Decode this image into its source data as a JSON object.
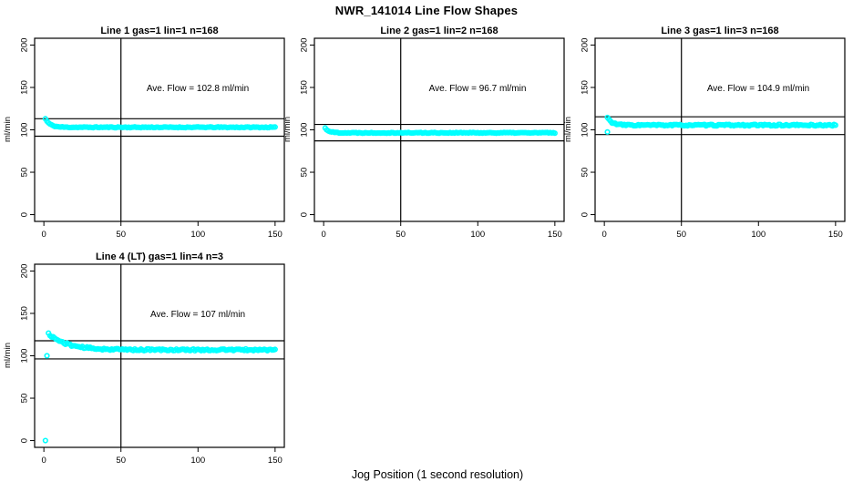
{
  "figure": {
    "title": "NWR_141014  Line Flow Shapes",
    "xlabel": "Jog Position (1 second resolution)",
    "ylabel": "ml/min",
    "point_color": "#00FFFF",
    "line_color": "#000000",
    "background": "#FFFFFF"
  },
  "chart_data": [
    {
      "type": "scatter",
      "title": "Line 1 gas=1 lin=1 n=168",
      "annotation": "Ave. Flow =  102.8  ml/min",
      "ave_flow_ml_min": 102.8,
      "n": 168,
      "xlim": [
        0,
        150
      ],
      "ylim": [
        0,
        200
      ],
      "xticks": [
        0,
        50,
        100,
        150
      ],
      "yticks": [
        0,
        50,
        100,
        150,
        200
      ],
      "ref_line_x": 50,
      "ref_lines_y": [
        113.1,
        92.5
      ],
      "annotation_xy": [
        100,
        150
      ],
      "model": {
        "x_start": 1,
        "x_end": 150,
        "steady": 103.0,
        "amplitude": 10.0,
        "tau": 3.0,
        "noise": 0.5,
        "seed": 11
      },
      "outliers": []
    },
    {
      "type": "scatter",
      "title": "Line 2 gas=1 lin=2 n=168",
      "annotation": "Ave. Flow =  96.7  ml/min",
      "ave_flow_ml_min": 96.7,
      "n": 168,
      "xlim": [
        0,
        150
      ],
      "ylim": [
        0,
        200
      ],
      "xticks": [
        0,
        50,
        100,
        150
      ],
      "yticks": [
        0,
        50,
        100,
        150,
        200
      ],
      "ref_line_x": 50,
      "ref_lines_y": [
        106.4,
        87.0
      ],
      "annotation_xy": [
        100,
        150
      ],
      "model": {
        "x_start": 1,
        "x_end": 150,
        "steady": 96.5,
        "amplitude": 5.5,
        "tau": 2.5,
        "noise": 0.5,
        "seed": 22
      },
      "outliers": []
    },
    {
      "type": "scatter",
      "title": "Line 3 gas=1 lin=3 n=168",
      "annotation": "Ave. Flow =  104.9  ml/min",
      "ave_flow_ml_min": 104.9,
      "n": 168,
      "xlim": [
        0,
        150
      ],
      "ylim": [
        0,
        200
      ],
      "xticks": [
        0,
        50,
        100,
        150
      ],
      "yticks": [
        0,
        50,
        100,
        150,
        200
      ],
      "ref_line_x": 50,
      "ref_lines_y": [
        115.4,
        94.4
      ],
      "annotation_xy": [
        100,
        150
      ],
      "model": {
        "x_start": 2,
        "x_end": 150,
        "steady": 105.5,
        "amplitude": 9.0,
        "tau": 3.0,
        "noise": 0.9,
        "seed": 33
      },
      "outliers": [
        [
          2,
          97.5
        ]
      ]
    },
    {
      "type": "scatter",
      "title": "Line 4 (LT) gas=1 lin=4 n=3",
      "annotation": "Ave. Flow =  107  ml/min",
      "ave_flow_ml_min": 107,
      "n": 3,
      "xlim": [
        0,
        150
      ],
      "ylim": [
        0,
        200
      ],
      "xticks": [
        0,
        50,
        100,
        150
      ],
      "yticks": [
        0,
        50,
        100,
        150,
        200
      ],
      "ref_line_x": 50,
      "ref_lines_y": [
        117.7,
        96.3
      ],
      "annotation_xy": [
        100,
        150
      ],
      "model": {
        "x_start": 3,
        "x_end": 150,
        "steady": 107.0,
        "amplitude": 19.0,
        "tau": 12.0,
        "noise": 1.1,
        "seed": 44
      },
      "outliers": [
        [
          1,
          0
        ],
        [
          2,
          100
        ]
      ]
    }
  ]
}
